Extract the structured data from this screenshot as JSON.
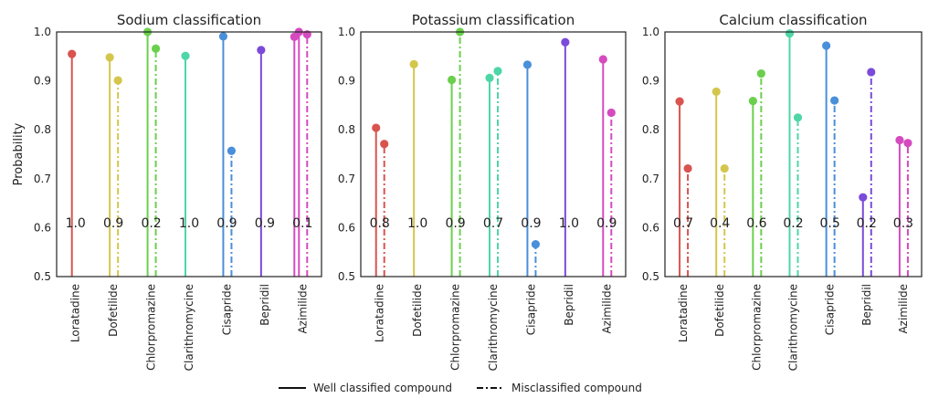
{
  "chart_data": [
    {
      "type": "lollipop",
      "title": "Sodium classification",
      "ylabel": "Probability",
      "ylim": [
        0.5,
        1.0
      ],
      "yticks": [
        "0.5",
        "0.6",
        "0.7",
        "0.8",
        "0.9",
        "1.0"
      ],
      "categories": [
        "Loratadine",
        "Dofetilide",
        "Chlorpromazine",
        "Clarithromycine",
        "Cisapride",
        "Bepridil",
        "Azimilide"
      ],
      "series": [
        {
          "style": "solid",
          "values": [
            0.955,
            0.948,
            1.0,
            0.951,
            0.991,
            0.963,
            1.0
          ]
        },
        {
          "style": "dashdot",
          "values": [
            null,
            0.901,
            0.966,
            null,
            0.757,
            null,
            0.995
          ]
        }
      ],
      "extra_point": {
        "category": "Azimilide",
        "style": "solid",
        "value": 0.99
      },
      "annotations": [
        "1.0",
        "0.9",
        "0.2",
        "1.0",
        "0.9",
        "0.9",
        "0.1"
      ]
    },
    {
      "type": "lollipop",
      "title": "Potassium classification",
      "ylim": [
        0.5,
        1.0
      ],
      "yticks": [
        "0.5",
        "0.6",
        "0.7",
        "0.8",
        "0.9",
        "1.0"
      ],
      "categories": [
        "Loratadine",
        "Dofetilide",
        "Chlorpromazine",
        "Clarithromycine",
        "Cisapride",
        "Bepridil",
        "Azimilide"
      ],
      "series": [
        {
          "style": "solid",
          "values": [
            0.804,
            0.934,
            0.902,
            0.906,
            0.933,
            0.979,
            0.944
          ]
        },
        {
          "style": "dashdot",
          "values": [
            0.771,
            null,
            1.0,
            0.92,
            0.566,
            null,
            0.835
          ]
        }
      ],
      "annotations": [
        "0.8",
        "1.0",
        "0.9",
        "0.7",
        "0.9",
        "1.0",
        "0.9"
      ]
    },
    {
      "type": "lollipop",
      "title": "Calcium classification",
      "ylim": [
        0.5,
        1.0
      ],
      "yticks": [
        "0.5",
        "0.6",
        "0.7",
        "0.8",
        "0.9",
        "1.0"
      ],
      "categories": [
        "Loratadine",
        "Dofetilide",
        "Chlorpromazine",
        "Clarithromycine",
        "Cisapride",
        "Bepridil",
        "Azimilide"
      ],
      "series": [
        {
          "style": "solid",
          "values": [
            0.858,
            0.878,
            0.859,
            0.997,
            0.972,
            0.662,
            0.779
          ]
        },
        {
          "style": "dashdot",
          "values": [
            0.721,
            0.721,
            0.915,
            0.825,
            0.86,
            0.918,
            0.773
          ]
        }
      ],
      "annotations": [
        "0.7",
        "0.4",
        "0.6",
        "0.2",
        "0.5",
        "0.2",
        "0.3"
      ]
    }
  ],
  "colors": [
    "#d9534f",
    "#d4c64c",
    "#6ad04c",
    "#4dd6a6",
    "#4a8fd9",
    "#7c4ad9",
    "#d64ac0"
  ],
  "legend": {
    "position": "bottom-center",
    "items": [
      {
        "label": "Well classified compound",
        "style": "solid"
      },
      {
        "label": "Misclassified compound",
        "style": "dashdot"
      }
    ]
  }
}
